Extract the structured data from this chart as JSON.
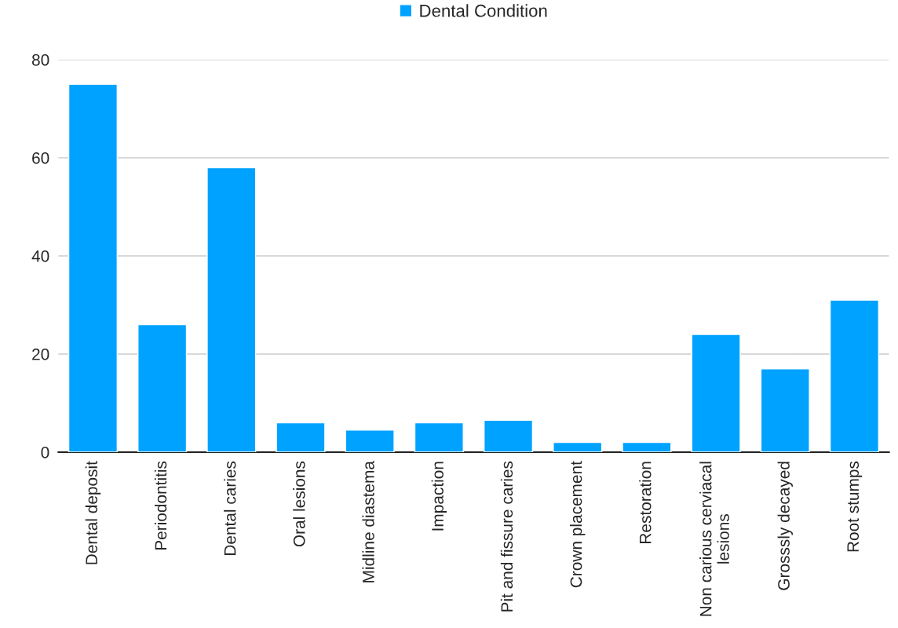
{
  "chart_data": {
    "type": "bar",
    "categories": [
      "Dental deposit",
      "Periodontitis",
      "Dental caries",
      "Oral lesions",
      "Midline diastema",
      "Impaction",
      "Pit and fissure caries",
      "Crown placement",
      "Restoration",
      "Non carious cerviacal\nlesions",
      "Grosssly decayed",
      "Root stumps"
    ],
    "series": [
      {
        "name": "Dental Condition",
        "color": "#00a2ff",
        "values": [
          75,
          26,
          58,
          6,
          4.5,
          6,
          6.5,
          2,
          2,
          24,
          17,
          31
        ]
      }
    ],
    "ylim": [
      0,
      80
    ],
    "yticks": [
      0,
      20,
      40,
      60,
      80
    ],
    "grid": "y",
    "legend": "top"
  }
}
